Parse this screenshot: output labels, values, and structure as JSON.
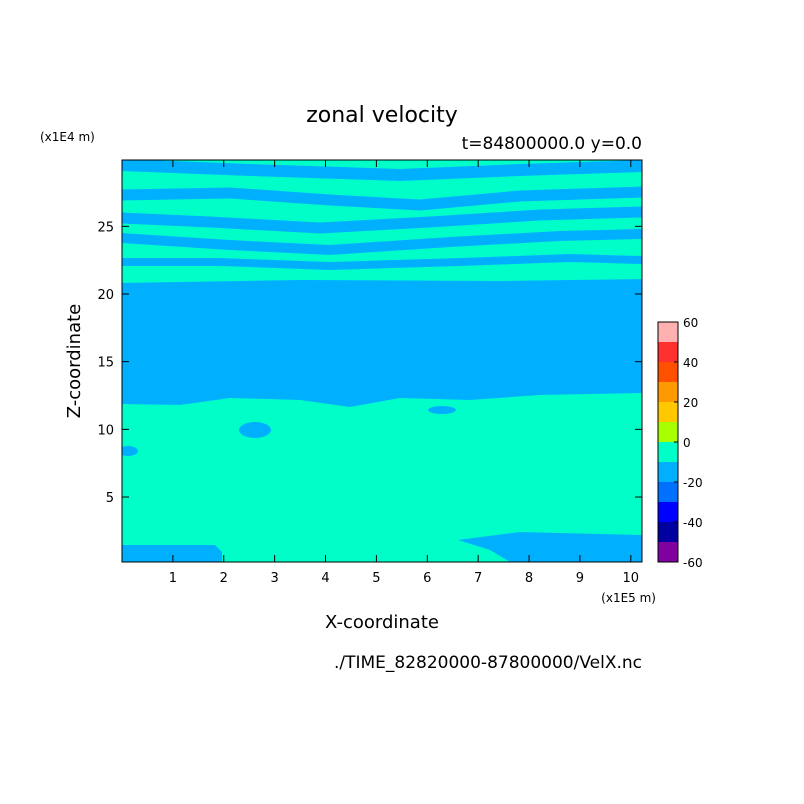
{
  "chart_data": {
    "type": "contour",
    "title": "zonal velocity",
    "subtitle": "t=84800000.0 y=0.0",
    "x_label": "X-coordinate",
    "y_label": "Z-coordinate",
    "x_unit": "(x1E5 m)",
    "y_unit": "(x1E4 m)",
    "source": "./TIME_82820000-87800000/VelX.nc",
    "xlim": [
      0,
      10.22
    ],
    "ylim": [
      0.2,
      29.9
    ],
    "xticks": [
      1,
      2,
      3,
      4,
      5,
      6,
      7,
      8,
      9,
      10
    ],
    "yticks": [
      5,
      10,
      15,
      20,
      25
    ],
    "levels": [
      -60,
      -50,
      -40,
      -30,
      -20,
      -10,
      0,
      10,
      20,
      30,
      40,
      50,
      60
    ],
    "colors": [
      "#8000a0",
      "#0000a0",
      "#0000ff",
      "#0070ff",
      "#00b0ff",
      "#00ffc8",
      "#a8ff00",
      "#ffc800",
      "#ff9900",
      "#ff5000",
      "#ff3030",
      "#ffb0b0"
    ],
    "colorbar_ticks": [
      -60,
      -40,
      -20,
      0,
      20,
      40,
      60
    ]
  }
}
